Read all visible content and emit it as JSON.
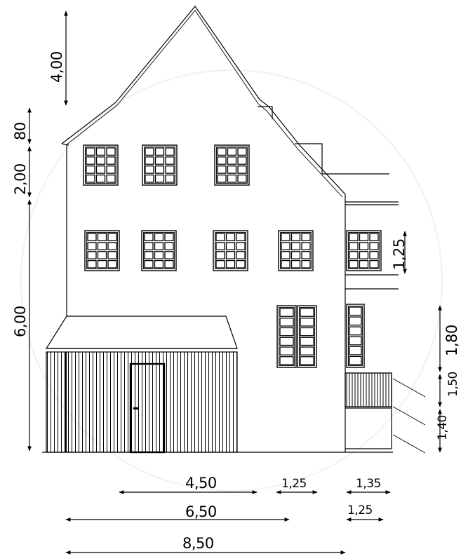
{
  "drawing": {
    "type": "house-elevation",
    "dimensions": {
      "vertical": [
        {
          "id": "roof",
          "label": "4,00"
        },
        {
          "id": "attic-knee",
          "label": "80"
        },
        {
          "id": "upper-story",
          "label": "2,00"
        },
        {
          "id": "lower-stories",
          "label": "6,00"
        },
        {
          "id": "side-window",
          "label": "1,25"
        },
        {
          "id": "right-upper",
          "label": "1,80"
        },
        {
          "id": "right-middle",
          "label": "1,50"
        },
        {
          "id": "right-lower",
          "label": "1,40"
        }
      ],
      "horizontal": [
        {
          "id": "width-450",
          "label": "4,50"
        },
        {
          "id": "width-125-a",
          "label": "1,25"
        },
        {
          "id": "width-135",
          "label": "1,35"
        },
        {
          "id": "width-650",
          "label": "6,50"
        },
        {
          "id": "width-125-b",
          "label": "1,25"
        },
        {
          "id": "width-850",
          "label": "8,50"
        }
      ]
    }
  }
}
